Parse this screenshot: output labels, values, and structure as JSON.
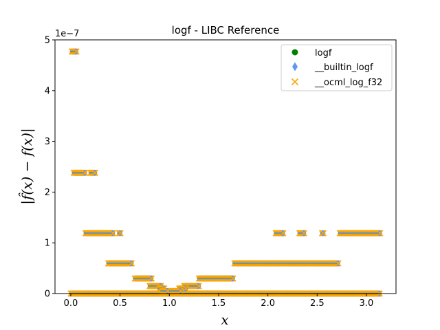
{
  "chart_data": {
    "type": "scatter",
    "title": "logf - LIBC Reference",
    "xlabel": "x",
    "ylabel": "|f̂(x) − f(x)|",
    "y_scale_label": "1e−7",
    "xlim": [
      -0.16,
      3.3
    ],
    "ylim": [
      0,
      5e-07
    ],
    "xticks": [
      0.0,
      0.5,
      1.0,
      1.5,
      2.0,
      2.5,
      3.0
    ],
    "xtick_labels": [
      "0.0",
      "0.5",
      "1.0",
      "1.5",
      "2.0",
      "2.5",
      "3.0"
    ],
    "yticks": [
      0,
      1e-07,
      2e-07,
      3e-07,
      4e-07,
      5e-07
    ],
    "ytick_labels": [
      "0",
      "1",
      "2",
      "3",
      "4",
      "5"
    ],
    "legend_position": "top-right",
    "grid": false,
    "series": [
      {
        "name": "logf",
        "marker": "circle",
        "color": "#008000"
      },
      {
        "name": "__builtin_logf",
        "marker": "diamond",
        "color": "#6495ed"
      },
      {
        "name": "__ocml_log_f32",
        "marker": "x",
        "color": "#ffa500"
      }
    ],
    "error_levels": [
      {
        "y": 0,
        "ranges": [
          [
            0.0,
            3.14
          ]
        ]
      },
      {
        "y": 4.77e-07,
        "ranges": [
          [
            0.01,
            0.06
          ]
        ]
      },
      {
        "y": 2.38e-07,
        "ranges": [
          [
            0.03,
            0.15
          ],
          [
            0.2,
            0.25
          ]
        ]
      },
      {
        "y": 1.19e-07,
        "ranges": [
          [
            0.15,
            0.43
          ],
          [
            0.49,
            0.51
          ],
          [
            2.08,
            2.16
          ],
          [
            2.32,
            2.37
          ],
          [
            2.55,
            2.57
          ],
          [
            2.73,
            3.14
          ]
        ]
      },
      {
        "y": 5.96e-08,
        "ranges": [
          [
            0.38,
            0.62
          ],
          [
            1.66,
            2.72
          ]
        ]
      },
      {
        "y": 2.98e-08,
        "ranges": [
          [
            0.65,
            0.82
          ],
          [
            1.3,
            1.65
          ]
        ]
      },
      {
        "y": 1.49e-08,
        "ranges": [
          [
            0.8,
            0.92
          ],
          [
            1.15,
            1.3
          ]
        ]
      },
      {
        "y": 1e-08,
        "ranges": [
          [
            0.9,
            0.95
          ],
          [
            1.1,
            1.17
          ]
        ]
      },
      {
        "y": 5e-09,
        "ranges": [
          [
            0.93,
            0.99
          ],
          [
            1.02,
            1.12
          ]
        ]
      }
    ]
  }
}
